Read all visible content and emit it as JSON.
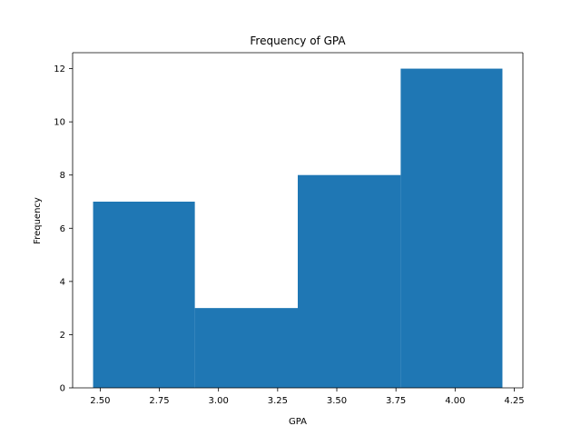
{
  "chart_data": {
    "type": "bar",
    "title": "Frequency of GPA",
    "xlabel": "GPA",
    "ylabel": "Frequency",
    "bins": [
      {
        "x0": 2.47,
        "x1": 2.9,
        "count": 7
      },
      {
        "x0": 2.9,
        "x1": 3.335,
        "count": 3
      },
      {
        "x0": 3.335,
        "x1": 3.77,
        "count": 8
      },
      {
        "x0": 3.77,
        "x1": 4.2,
        "count": 12
      }
    ],
    "xlim": [
      2.3835,
      4.2865
    ],
    "ylim": [
      0,
      12.6
    ],
    "xticks": [
      2.5,
      2.75,
      3.0,
      3.25,
      3.5,
      3.75,
      4.0,
      4.25
    ],
    "xtick_labels": [
      "2.50",
      "2.75",
      "3.00",
      "3.25",
      "3.50",
      "3.75",
      "4.00",
      "4.25"
    ],
    "yticks": [
      0,
      2,
      4,
      6,
      8,
      10,
      12
    ],
    "ytick_labels": [
      "0",
      "2",
      "4",
      "6",
      "8",
      "10",
      "12"
    ],
    "bar_color": "#1f77b4",
    "grid": false,
    "legend": "none"
  }
}
